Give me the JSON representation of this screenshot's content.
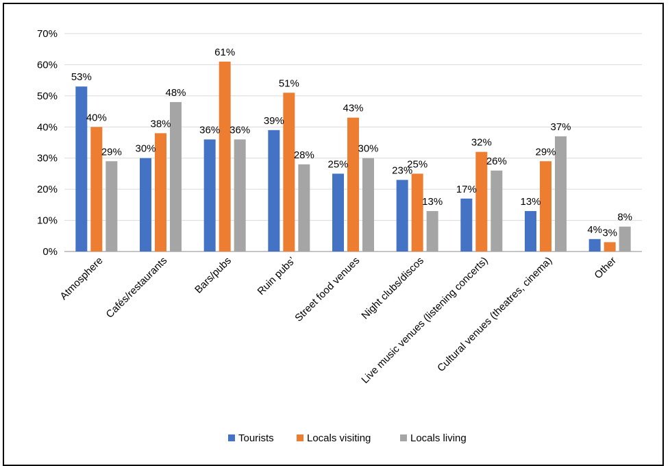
{
  "chart_data": {
    "type": "bar",
    "title": "",
    "xlabel": "",
    "ylabel": "",
    "ylim": [
      0,
      70
    ],
    "yticks": [
      "0%",
      "10%",
      "20%",
      "30%",
      "40%",
      "50%",
      "60%",
      "70%"
    ],
    "grid": true,
    "legend_position": "bottom",
    "categories": [
      "Atmosphere",
      "Cafés/restaurants",
      "Bars/pubs",
      "Ruin pubs’",
      "Street food venues",
      "Night clubs/discos",
      "Live music venues (listening concerts)",
      "Cultural venues (theatres, cinema)",
      "Other"
    ],
    "series": [
      {
        "name": "Tourists",
        "color": "#4472C4",
        "values": [
          53,
          30,
          36,
          39,
          25,
          23,
          17,
          13,
          4
        ],
        "labels": [
          "53%",
          "30%",
          "36%",
          "39%",
          "25%",
          "23%",
          "17%",
          "13%",
          "4%"
        ]
      },
      {
        "name": "Locals visiting",
        "color": "#ED7D31",
        "values": [
          40,
          38,
          61,
          51,
          43,
          25,
          32,
          29,
          3
        ],
        "labels": [
          "40%",
          "38%",
          "61%",
          "51%",
          "43%",
          "25%",
          "32%",
          "29%",
          "3%"
        ]
      },
      {
        "name": "Locals living",
        "color": "#A5A5A5",
        "values": [
          29,
          48,
          36,
          28,
          30,
          13,
          26,
          37,
          8
        ],
        "labels": [
          "29%",
          "48%",
          "36%",
          "28%",
          "30%",
          "13%",
          "26%",
          "37%",
          "8%"
        ]
      }
    ]
  }
}
